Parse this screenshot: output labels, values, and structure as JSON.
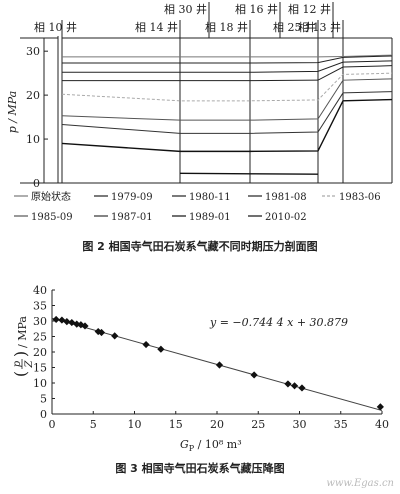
{
  "figure2": {
    "caption": "图 2   相国寺气田石炭系气藏不同时期压力剖面图",
    "wells_top": [
      "相 30 井",
      "相 16 井",
      "相 12 井"
    ],
    "wells_bottom": [
      "相 10 井",
      "相 14 井",
      "相 18 井",
      "相 25 井",
      "相 13 井"
    ],
    "chart_data": {
      "type": "line",
      "ylabel": "p / MPa",
      "ylim": [
        0,
        33
      ],
      "yticks": [
        "0",
        "10",
        "20",
        "30"
      ],
      "x_wells": [
        "相 10 井",
        "相 14 井",
        "相 18 井",
        "相 25 井",
        "相 13 井"
      ],
      "legend": {
        "placement": "bottom",
        "items": [
          "原始状态",
          "1979-09",
          "1980-11",
          "1981-08",
          "1983-06",
          "1985-09",
          "1987-01",
          "1989-01",
          "2010-02"
        ]
      },
      "series": [
        {
          "name": "原始状态",
          "color": "#777777",
          "values": [
            28.7,
            28.7,
            28.7,
            28.7,
            28.8
          ]
        },
        {
          "name": "1979-09",
          "color": "#222222",
          "values": [
            27.3,
            27.3,
            27.3,
            27.4,
            28.6
          ]
        },
        {
          "name": "1980-11",
          "color": "#222222",
          "values": [
            25.2,
            25.2,
            25.2,
            25.4,
            27.5
          ]
        },
        {
          "name": "1981-08",
          "color": "#222222",
          "values": [
            23.3,
            23.3,
            23.3,
            23.4,
            26.4
          ]
        },
        {
          "name": "1983-06",
          "color": "#aaaaaa",
          "values": [
            20.2,
            18.7,
            18.7,
            18.9,
            24.7
          ]
        },
        {
          "name": "1985-09",
          "color": "#555555",
          "values": [
            15.3,
            14.3,
            14.3,
            14.6,
            23.4
          ]
        },
        {
          "name": "1987-01",
          "color": "#333333",
          "values": [
            13.3,
            11.3,
            11.3,
            11.6,
            20.5
          ]
        },
        {
          "name": "1989-01",
          "color": "#111111",
          "values": [
            9.0,
            7.2,
            7.2,
            7.3,
            18.7
          ]
        },
        {
          "name": "2010-02",
          "color": "#111111",
          "values": [
            null,
            2.2,
            2.1,
            2.0,
            null
          ]
        }
      ]
    }
  },
  "figure3": {
    "caption": "图 3   相国寺气田石炭系气藏压降图",
    "watermark": "www.Egas.cn",
    "chart_data": {
      "type": "scatter",
      "xlabel_main": "G",
      "xlabel_sub": "P",
      "xlabel_rest": " / 10⁸ m³",
      "ylabel_p": "p",
      "ylabel_z": "Z",
      "ylabel_unit": "/ MPa",
      "xlim": [
        0,
        40
      ],
      "ylim": [
        0,
        40
      ],
      "xticks": [
        "0",
        "5",
        "10",
        "15",
        "20",
        "25",
        "30",
        "35",
        "40"
      ],
      "yticks": [
        "0",
        "5",
        "10",
        "15",
        "20",
        "25",
        "30",
        "35",
        "40"
      ],
      "equation": "y = −0.744 4 x + 30.879",
      "fit": {
        "slope": -0.7444,
        "intercept": 30.879
      },
      "x": [
        0.5,
        1.2,
        1.8,
        2.4,
        3.0,
        3.5,
        4.0,
        5.6,
        6.0,
        7.6,
        11.4,
        13.2,
        20.3,
        24.5,
        28.6,
        29.4,
        30.3,
        39.8
      ],
      "y": [
        30.5,
        30.3,
        29.8,
        29.5,
        29.0,
        28.8,
        28.4,
        26.6,
        26.3,
        25.2,
        22.4,
        20.9,
        15.8,
        12.6,
        9.7,
        9.1,
        8.4,
        2.3
      ]
    }
  }
}
